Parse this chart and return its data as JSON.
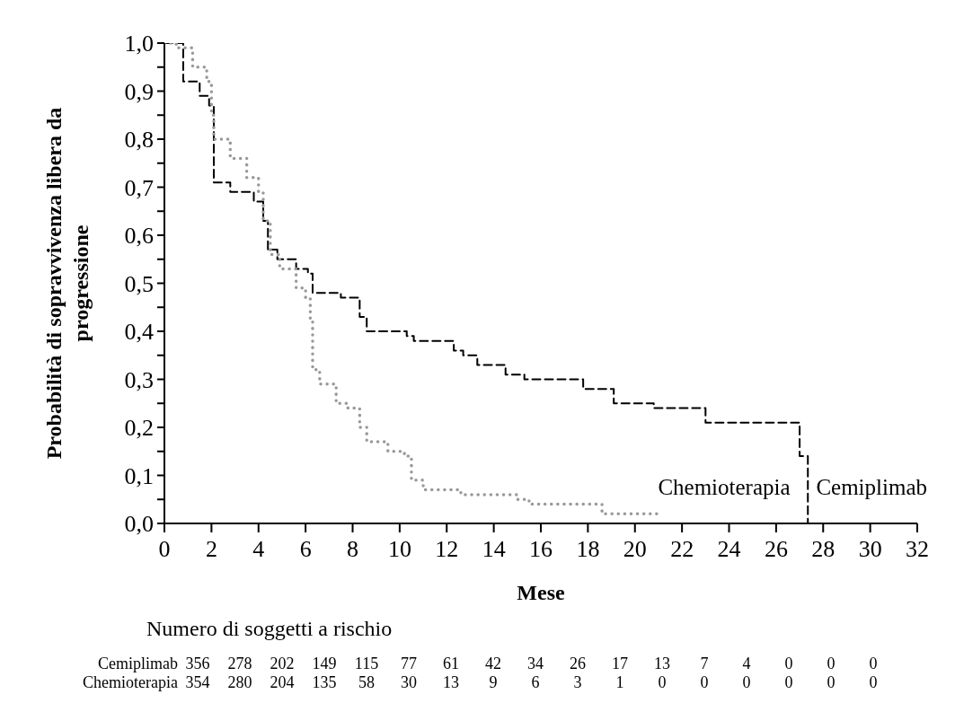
{
  "chart_data": {
    "type": "step",
    "xlabel": "Mese",
    "ylabel": "Probabilità di sopravvivenza libera da progressione",
    "xlim": [
      0,
      32
    ],
    "xticks": [
      0,
      2,
      4,
      6,
      8,
      10,
      12,
      14,
      16,
      18,
      20,
      22,
      24,
      26,
      28,
      30,
      32
    ],
    "ylim": [
      0,
      1
    ],
    "yticks": [
      {
        "value": 0,
        "label": "0,0"
      },
      {
        "value": 0.05,
        "label": null
      },
      {
        "value": 0.1,
        "label": "0,1"
      },
      {
        "value": 0.15,
        "label": null
      },
      {
        "value": 0.2,
        "label": "0,2"
      },
      {
        "value": 0.25,
        "label": null
      },
      {
        "value": 0.3,
        "label": "0,3"
      },
      {
        "value": 0.35,
        "label": null
      },
      {
        "value": 0.4,
        "label": "0,4"
      },
      {
        "value": 0.45,
        "label": null
      },
      {
        "value": 0.5,
        "label": "0,5"
      },
      {
        "value": 0.55,
        "label": null
      },
      {
        "value": 0.6,
        "label": "0,6"
      },
      {
        "value": 0.65,
        "label": null
      },
      {
        "value": 0.7,
        "label": "0,7"
      },
      {
        "value": 0.75,
        "label": null
      },
      {
        "value": 0.8,
        "label": "0,8"
      },
      {
        "value": 0.85,
        "label": null
      },
      {
        "value": 0.9,
        "label": "0,9"
      },
      {
        "value": 0.95,
        "label": null
      },
      {
        "value": 1,
        "label": "1,0"
      }
    ],
    "grid": false,
    "series": [
      {
        "name": "Cemiplimab",
        "color": "#000000",
        "line_style": "dashed",
        "x": [
          0,
          0.8,
          1.5,
          1.9,
          2.1,
          2.8,
          3.8,
          4.2,
          4.4,
          4.8,
          5.6,
          6.1,
          6.3,
          7.5,
          8.3,
          8.6,
          10.3,
          10.6,
          12.3,
          12.7,
          13.3,
          14.5,
          15.3,
          17.2,
          17.8,
          19.1,
          20.8,
          23,
          24,
          27,
          27.3,
          27.35
        ],
        "values": [
          1,
          0.92,
          0.89,
          0.87,
          0.71,
          0.69,
          0.67,
          0.63,
          0.57,
          0.55,
          0.53,
          0.52,
          0.48,
          0.47,
          0.43,
          0.4,
          0.39,
          0.38,
          0.36,
          0.35,
          0.33,
          0.31,
          0.3,
          0.3,
          0.28,
          0.25,
          0.24,
          0.21,
          0.21,
          0.14,
          0.14,
          0
        ]
      },
      {
        "name": "Chemioterapia",
        "color": "#999999",
        "line_style": "dotted",
        "x": [
          0,
          0.5,
          1.2,
          1.8,
          2,
          2.1,
          2.8,
          3.5,
          4,
          4.2,
          4.5,
          4.9,
          5.6,
          6,
          6.2,
          6.3,
          6.6,
          7.3,
          7.8,
          8.3,
          8.6,
          9.5,
          10.2,
          10.5,
          11,
          12.6,
          15,
          15.5,
          18.6,
          21
        ],
        "values": [
          1,
          0.99,
          0.95,
          0.92,
          0.85,
          0.8,
          0.76,
          0.72,
          0.69,
          0.63,
          0.56,
          0.53,
          0.49,
          0.47,
          0.42,
          0.32,
          0.29,
          0.25,
          0.24,
          0.2,
          0.17,
          0.15,
          0.14,
          0.09,
          0.07,
          0.06,
          0.05,
          0.04,
          0.02,
          0.02
        ]
      }
    ],
    "annotations": [
      "Numero di soggetti a rischio",
      "Cemiplimab 356 278 202 149 115 77 61 42 34 26 17 13 7 4 0 0 0",
      "Chemioterapia 354 280 204 135 58 30 13 9 6 3 1 0 0 0 0 0 0"
    ]
  }
}
